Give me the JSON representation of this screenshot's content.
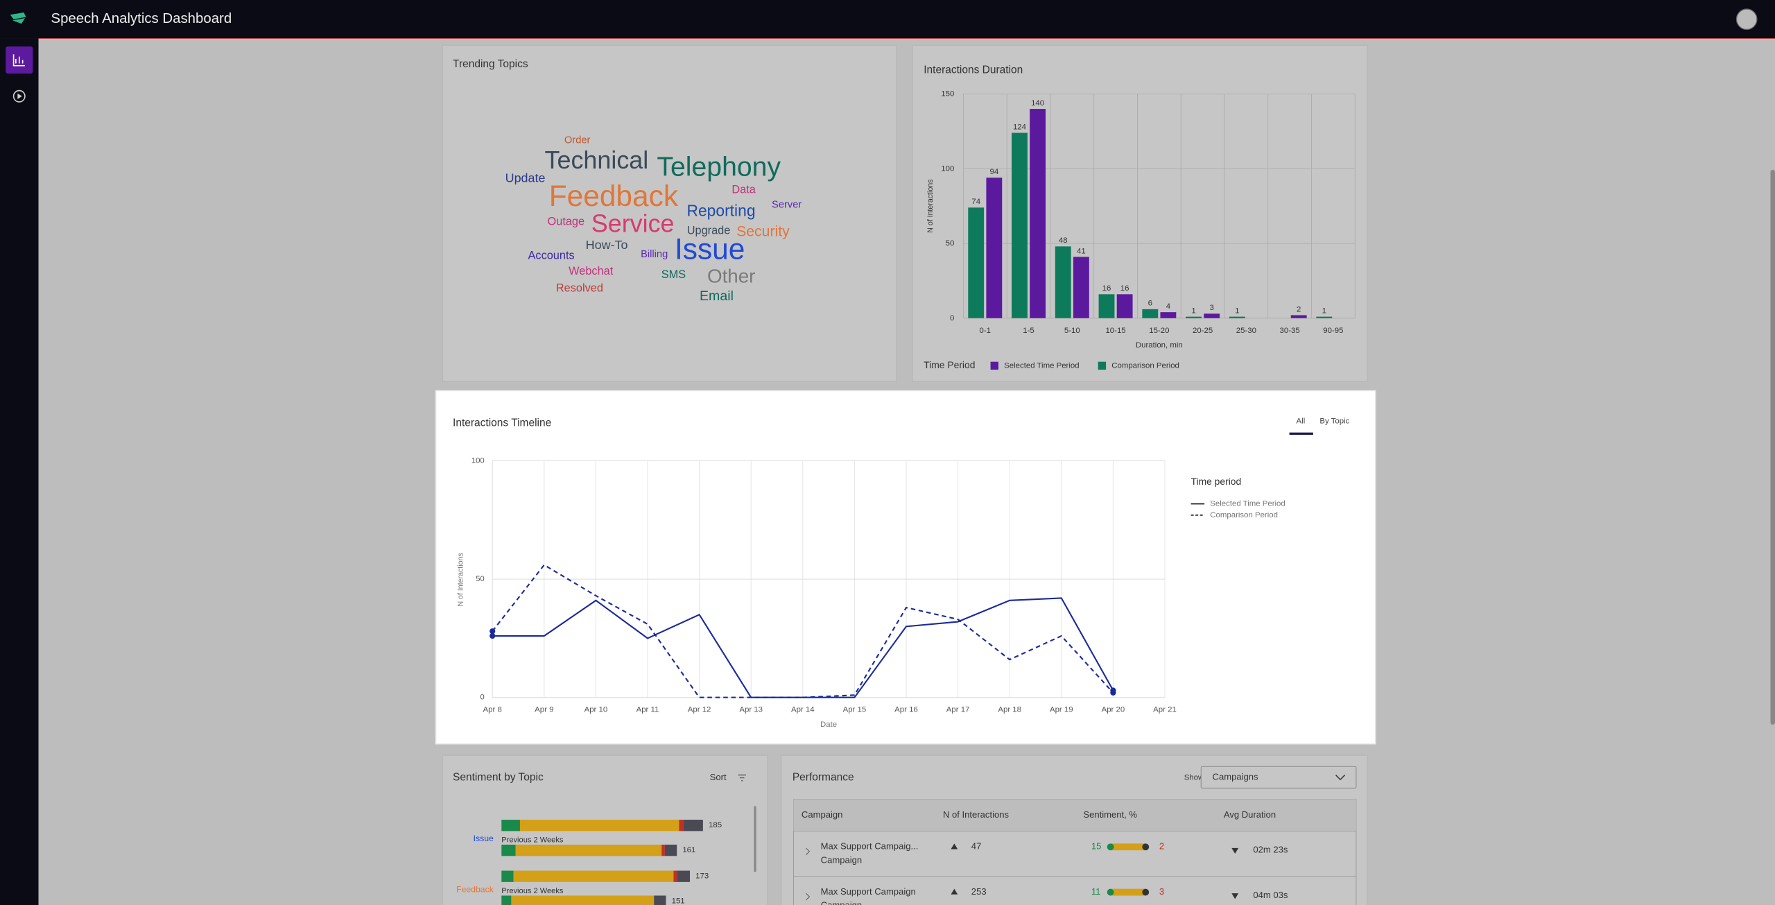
{
  "header": {
    "title": "Speech Analytics Dashboard"
  },
  "trending_topics": {
    "title": "Trending Topics",
    "words": [
      {
        "text": "Order",
        "color": "#c0562a"
      },
      {
        "text": "Technical",
        "color": "#3b4a5a"
      },
      {
        "text": "Telephony",
        "color": "#0f6b5c"
      },
      {
        "text": "Update",
        "color": "#2a3a8a"
      },
      {
        "text": "Feedback",
        "color": "#e0763a"
      },
      {
        "text": "Data",
        "color": "#c2327a"
      },
      {
        "text": "Server",
        "color": "#5a2ab0"
      },
      {
        "text": "Reporting",
        "color": "#1f4aa8"
      },
      {
        "text": "Outage",
        "color": "#c2327a"
      },
      {
        "text": "Service",
        "color": "#d63a6e"
      },
      {
        "text": "Upgrade",
        "color": "#3b4a5a"
      },
      {
        "text": "Security",
        "color": "#e0763a"
      },
      {
        "text": "How-To",
        "color": "#3b4a5a"
      },
      {
        "text": "Issue",
        "color": "#1f4ad6"
      },
      {
        "text": "Accounts",
        "color": "#3a2aa0"
      },
      {
        "text": "Billing",
        "color": "#5a2ab0"
      },
      {
        "text": "Webchat",
        "color": "#c2327a"
      },
      {
        "text": "SMS",
        "color": "#0f6b5c"
      },
      {
        "text": "Other",
        "color": "#7a7a7a"
      },
      {
        "text": "Resolved",
        "color": "#c03a3a"
      },
      {
        "text": "Email",
        "color": "#0f6b5c"
      }
    ]
  },
  "chart_data": [
    {
      "type": "bar",
      "title": "Interactions Duration",
      "x_label": "Duration, min",
      "y_label": "N of Interactions",
      "categories": [
        "0-1",
        "1-5",
        "5-10",
        "10-15",
        "15-20",
        "20-25",
        "25-30",
        "30-35",
        "90-95"
      ],
      "series": [
        {
          "name": "Selected Time Period",
          "color": "#5b1a9e",
          "values": [
            94,
            140,
            41,
            16,
            4,
            3,
            null,
            2,
            null
          ]
        },
        {
          "name": "Comparison Period",
          "color": "#0e7a5c",
          "values": [
            74,
            124,
            48,
            16,
            6,
            1,
            1,
            null,
            1
          ]
        }
      ],
      "ylim": [
        0,
        150
      ],
      "yticks": [
        0,
        50,
        100,
        150
      ],
      "grid": true,
      "legend_title": "Time Period",
      "legend": "bottom-left"
    },
    {
      "type": "line",
      "title": "Interactions Timeline",
      "tabs": [
        "All",
        "By Topic"
      ],
      "x_label": "Date",
      "y_label": "N of Interactions",
      "categories": [
        "Apr 8",
        "Apr 9",
        "Apr 10",
        "Apr 11",
        "Apr 12",
        "Apr 13",
        "Apr 14",
        "Apr 15",
        "Apr 16",
        "Apr 17",
        "Apr 18",
        "Apr 19",
        "Apr 20",
        "Apr 21"
      ],
      "series": [
        {
          "name": "Selected Time Period",
          "color": "#1a2a9a",
          "dash": "solid",
          "values": [
            26,
            26,
            41,
            25,
            35,
            0,
            0,
            0,
            30,
            32,
            41,
            42,
            3,
            null
          ]
        },
        {
          "name": "Comparison Period",
          "color": "#1a2a9a",
          "dash": "dashed",
          "values": [
            28,
            56,
            43,
            31,
            0,
            0,
            0,
            1,
            38,
            33,
            16,
            26,
            2,
            null
          ]
        }
      ],
      "ylim": [
        0,
        100
      ],
      "yticks": [
        0,
        50,
        100
      ],
      "grid": true,
      "legend_title": "Time period",
      "legend": "right"
    }
  ],
  "sentiment": {
    "title": "Sentiment by Topic",
    "sort_label": "Sort",
    "segment_colors": [
      "#1a8a4a",
      "#d4a017",
      "#c0302a",
      "#4a4a55"
    ],
    "topics": [
      {
        "name": "Issue",
        "color": "#1f4ad6",
        "current": {
          "segments": [
            17,
            146,
            4,
            18
          ],
          "total": 185
        },
        "previous_label": "Previous 2 Weeks",
        "previous": {
          "segments": [
            13,
            134,
            3,
            11
          ],
          "total": 161
        }
      },
      {
        "name": "Feedback",
        "color": "#e0763a",
        "current": {
          "segments": [
            11,
            147,
            3,
            12
          ],
          "total": 173
        },
        "previous_label": "Previous 2 Weeks",
        "previous": {
          "segments": [
            9,
            131,
            0,
            11
          ],
          "total": 151
        }
      }
    ]
  },
  "performance": {
    "title": "Performance",
    "show_label": "Show",
    "show_value": "Campaigns",
    "columns": [
      "Campaign",
      "N of Interactions",
      "Sentiment, %",
      "Avg Duration"
    ],
    "rows": [
      {
        "campaign": "Max Support Campaig...",
        "type": "Campaign",
        "interactions": 47,
        "positive": 15,
        "negative": 2,
        "avg_duration": "02m 23s"
      },
      {
        "campaign": "Max Support Campaign",
        "type": "Campaign",
        "interactions": 253,
        "positive": 11,
        "negative": 3,
        "avg_duration": "04m 03s"
      }
    ]
  }
}
